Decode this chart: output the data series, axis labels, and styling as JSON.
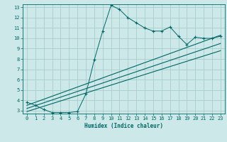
{
  "xlabel": "Humidex (Indice chaleur)",
  "bg_color": "#cce8e8",
  "grid_color": "#aacccc",
  "line_color": "#006666",
  "xlim": [
    -0.5,
    23.5
  ],
  "ylim": [
    2.7,
    13.3
  ],
  "xticks": [
    0,
    1,
    2,
    3,
    4,
    5,
    6,
    7,
    8,
    9,
    10,
    11,
    12,
    13,
    14,
    15,
    16,
    17,
    18,
    19,
    20,
    21,
    22,
    23
  ],
  "yticks": [
    3,
    4,
    5,
    6,
    7,
    8,
    9,
    10,
    11,
    12,
    13
  ],
  "main_x": [
    0,
    1,
    2,
    3,
    4,
    5,
    6,
    7,
    8,
    9,
    10,
    11,
    12,
    13,
    14,
    15,
    16,
    17,
    18,
    19,
    20,
    21,
    22,
    23
  ],
  "main_y": [
    3.8,
    3.5,
    3.1,
    2.8,
    2.8,
    2.8,
    2.9,
    4.6,
    7.9,
    10.7,
    13.2,
    12.8,
    12.0,
    11.5,
    11.0,
    10.7,
    10.7,
    11.1,
    10.2,
    9.4,
    10.1,
    10.0,
    10.0,
    10.2
  ],
  "reg_lines": [
    {
      "x": [
        0,
        23
      ],
      "y": [
        3.5,
        10.3
      ]
    },
    {
      "x": [
        0,
        23
      ],
      "y": [
        3.2,
        9.5
      ]
    },
    {
      "x": [
        0,
        23
      ],
      "y": [
        2.9,
        8.8
      ]
    }
  ]
}
